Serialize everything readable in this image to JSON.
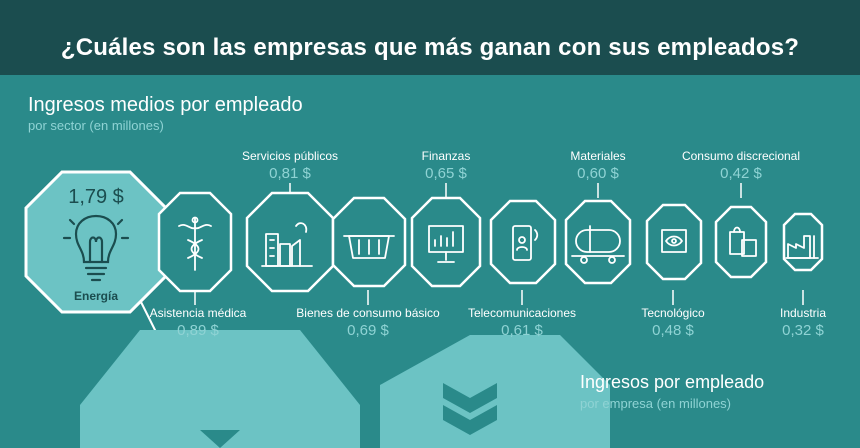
{
  "header": {
    "title": "¿Cuáles son las empresas que más ganan con sus empleados?"
  },
  "section1": {
    "heading": "Ingresos medios por empleado",
    "subheading": "por sector (en millones)"
  },
  "section2": {
    "heading": "Ingresos por empleado",
    "subheading": "por empresa (en millones)"
  },
  "sectors": [
    {
      "name": "Energía",
      "value": "1,79 $",
      "icon": "lightbulb-icon"
    },
    {
      "name": "Asistencia médica",
      "value": "0,89 $",
      "icon": "caduceus-icon"
    },
    {
      "name": "Servicios públicos",
      "value": "0,81 $",
      "icon": "factory-icon"
    },
    {
      "name": "Bienes de consumo básico",
      "value": "0,69 $",
      "icon": "basket-icon"
    },
    {
      "name": "Finanzas",
      "value": "0,65 $",
      "icon": "presentation-chart-icon"
    },
    {
      "name": "Telecomunicaciones",
      "value": "0,61 $",
      "icon": "smartphone-icon"
    },
    {
      "name": "Materiales",
      "value": "0,60 $",
      "icon": "tank-car-icon"
    },
    {
      "name": "Tecnológico",
      "value": "0,48 $",
      "icon": "monitor-eye-icon"
    },
    {
      "name": "Consumo discrecional",
      "value": "0,42 $",
      "icon": "shopping-bags-icon"
    },
    {
      "name": "Industria",
      "value": "0,32 $",
      "icon": "industrial-plant-icon"
    }
  ],
  "colors": {
    "background": "#2a8a8a",
    "header_band": "#1b4d4f",
    "accent_light": "#8fd3d4",
    "energy_fill": "#6cc3c4"
  }
}
